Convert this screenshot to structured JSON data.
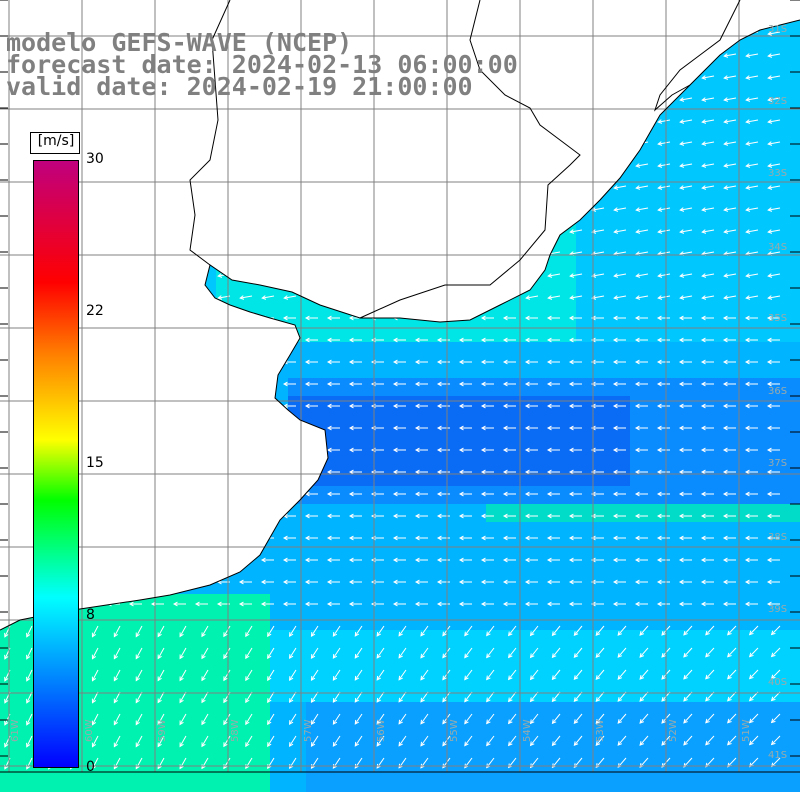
{
  "header": {
    "line1": "modelo GEFS-WAVE (NCEP)",
    "line2": "forecast date: 2024-02-13 06:00:00",
    "line3": "valid date: 2024-02-19 21:00:00"
  },
  "colorbar": {
    "unit": "[m/s]",
    "min": 0,
    "max": 30,
    "ticks": [
      "30",
      "22",
      "15",
      "8",
      "0"
    ],
    "colors": [
      "#0000ff",
      "#0080ff",
      "#00ffff",
      "#00ff00",
      "#ffff00",
      "#ff8000",
      "#ff0000",
      "#c0007e"
    ]
  },
  "map": {
    "lat_labels": [
      "31S",
      "32S",
      "33S",
      "34S",
      "35S",
      "36S",
      "37S",
      "38S",
      "39S",
      "40S",
      "41S"
    ],
    "lon_labels": [
      "61W",
      "60W",
      "59W",
      "58W",
      "57W",
      "56W",
      "55W",
      "54W",
      "53W",
      "52W",
      "51W"
    ],
    "land_color": "#ffffff",
    "coast_color": "#000000",
    "grid_color": "#808080",
    "arrow_color": "#ffffff"
  }
}
